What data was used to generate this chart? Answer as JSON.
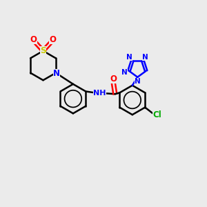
{
  "bg_color": "#ebebeb",
  "bond_color": "#000000",
  "nitrogen_color": "#0000ff",
  "oxygen_color": "#ff0000",
  "sulfur_color": "#cccc00",
  "chlorine_color": "#00aa00",
  "line_width": 1.8,
  "figsize": [
    3.0,
    3.0
  ],
  "dpi": 100,
  "xlim": [
    0,
    12
  ],
  "ylim": [
    0,
    12
  ]
}
